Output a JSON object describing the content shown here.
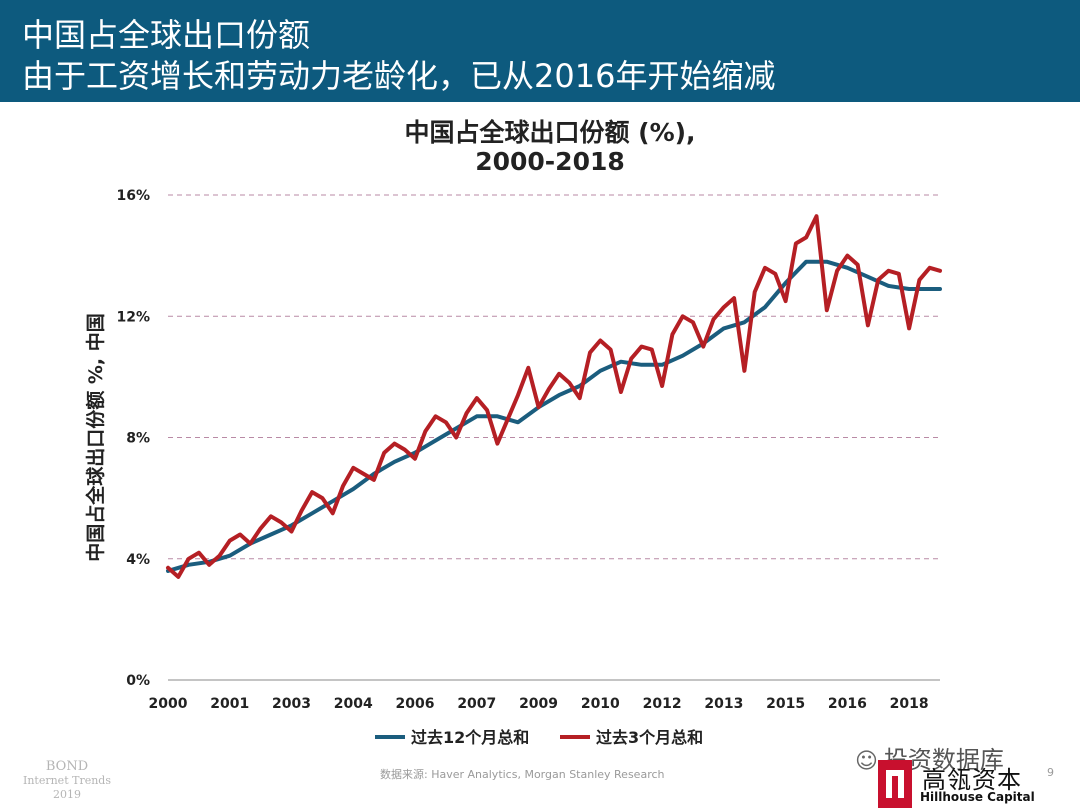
{
  "header": {
    "line1": "中国占全球出口份额",
    "line2": "由于工资增长和劳动力老龄化，已从2016年开始缩减"
  },
  "chart_data": {
    "type": "line",
    "title_line1": "中国占全球出口份额 (%),",
    "title_line2": "2000-2018",
    "ylabel": "中国占全球出口份额 %, 中国",
    "xlabel": "",
    "ylim": [
      0,
      16
    ],
    "y_ticks": [
      "0%",
      "4%",
      "8%",
      "12%",
      "16%"
    ],
    "y_tick_values": [
      0,
      4,
      8,
      12,
      16
    ],
    "x_range": [
      2000,
      2018.75
    ],
    "x_tick_labels": [
      "2000",
      "2001",
      "2003",
      "2004",
      "2006",
      "2007",
      "2009",
      "2010",
      "2012",
      "2013",
      "2015",
      "2016",
      "2018"
    ],
    "x_tick_values": [
      2000,
      2001.5,
      2003,
      2004.5,
      2006,
      2007.5,
      2009,
      2010.5,
      2012,
      2013.5,
      2015,
      2016.5,
      2018
    ],
    "grid": "horizontal-dashed",
    "legend_position": "bottom",
    "colors": {
      "series_12m": "#1b5d7e",
      "series_3m": "#b51f24",
      "grid": "#b98aa5"
    },
    "series": [
      {
        "name": "过去12个月总和",
        "x": [
          2000.0,
          2000.5,
          2001.0,
          2001.5,
          2002.0,
          2002.5,
          2003.0,
          2003.5,
          2004.0,
          2004.5,
          2005.0,
          2005.5,
          2006.0,
          2006.5,
          2007.0,
          2007.5,
          2008.0,
          2008.5,
          2009.0,
          2009.5,
          2010.0,
          2010.5,
          2011.0,
          2011.5,
          2012.0,
          2012.5,
          2013.0,
          2013.5,
          2014.0,
          2014.5,
          2015.0,
          2015.5,
          2016.0,
          2016.5,
          2017.0,
          2017.5,
          2018.0,
          2018.5,
          2018.75
        ],
        "values": [
          3.6,
          3.8,
          3.9,
          4.1,
          4.5,
          4.8,
          5.1,
          5.5,
          5.9,
          6.3,
          6.8,
          7.2,
          7.5,
          7.9,
          8.3,
          8.7,
          8.7,
          8.5,
          9.0,
          9.4,
          9.7,
          10.2,
          10.5,
          10.4,
          10.4,
          10.7,
          11.1,
          11.6,
          11.8,
          12.3,
          13.1,
          13.8,
          13.8,
          13.6,
          13.3,
          13.0,
          12.9,
          12.9,
          12.9
        ]
      },
      {
        "name": "过去3个月总和",
        "x": [
          2000.0,
          2000.25,
          2000.5,
          2000.75,
          2001.0,
          2001.25,
          2001.5,
          2001.75,
          2002.0,
          2002.25,
          2002.5,
          2002.75,
          2003.0,
          2003.25,
          2003.5,
          2003.75,
          2004.0,
          2004.25,
          2004.5,
          2004.75,
          2005.0,
          2005.25,
          2005.5,
          2005.75,
          2006.0,
          2006.25,
          2006.5,
          2006.75,
          2007.0,
          2007.25,
          2007.5,
          2007.75,
          2008.0,
          2008.25,
          2008.5,
          2008.75,
          2009.0,
          2009.25,
          2009.5,
          2009.75,
          2010.0,
          2010.25,
          2010.5,
          2010.75,
          2011.0,
          2011.25,
          2011.5,
          2011.75,
          2012.0,
          2012.25,
          2012.5,
          2012.75,
          2013.0,
          2013.25,
          2013.5,
          2013.75,
          2014.0,
          2014.25,
          2014.5,
          2014.75,
          2015.0,
          2015.25,
          2015.5,
          2015.75,
          2016.0,
          2016.25,
          2016.5,
          2016.75,
          2017.0,
          2017.25,
          2017.5,
          2017.75,
          2018.0,
          2018.25,
          2018.5,
          2018.75
        ],
        "values": [
          3.7,
          3.4,
          4.0,
          4.2,
          3.8,
          4.1,
          4.6,
          4.8,
          4.5,
          5.0,
          5.4,
          5.2,
          4.9,
          5.6,
          6.2,
          6.0,
          5.5,
          6.4,
          7.0,
          6.8,
          6.6,
          7.5,
          7.8,
          7.6,
          7.3,
          8.2,
          8.7,
          8.5,
          8.0,
          8.8,
          9.3,
          8.9,
          7.8,
          8.6,
          9.4,
          10.3,
          9.0,
          9.6,
          10.1,
          9.8,
          9.3,
          10.8,
          11.2,
          10.9,
          9.5,
          10.6,
          11.0,
          10.9,
          9.7,
          11.4,
          12.0,
          11.8,
          11.0,
          11.9,
          12.3,
          12.6,
          10.2,
          12.8,
          13.6,
          13.4,
          12.5,
          14.4,
          14.6,
          15.3,
          12.2,
          13.5,
          14.0,
          13.7,
          11.7,
          13.2,
          13.5,
          13.4,
          11.6,
          13.2,
          13.6,
          13.5
        ]
      }
    ]
  },
  "footer": {
    "brand_line1": "BOND",
    "brand_line2": "Internet Trends",
    "brand_line3": "2019",
    "source": "数据来源: Haver Analytics, Morgan Stanley Research",
    "page_number": "9",
    "watermark": "投资数据库",
    "logo_cn": "高瓴资本",
    "logo_en": "Hillhouse Capital"
  }
}
